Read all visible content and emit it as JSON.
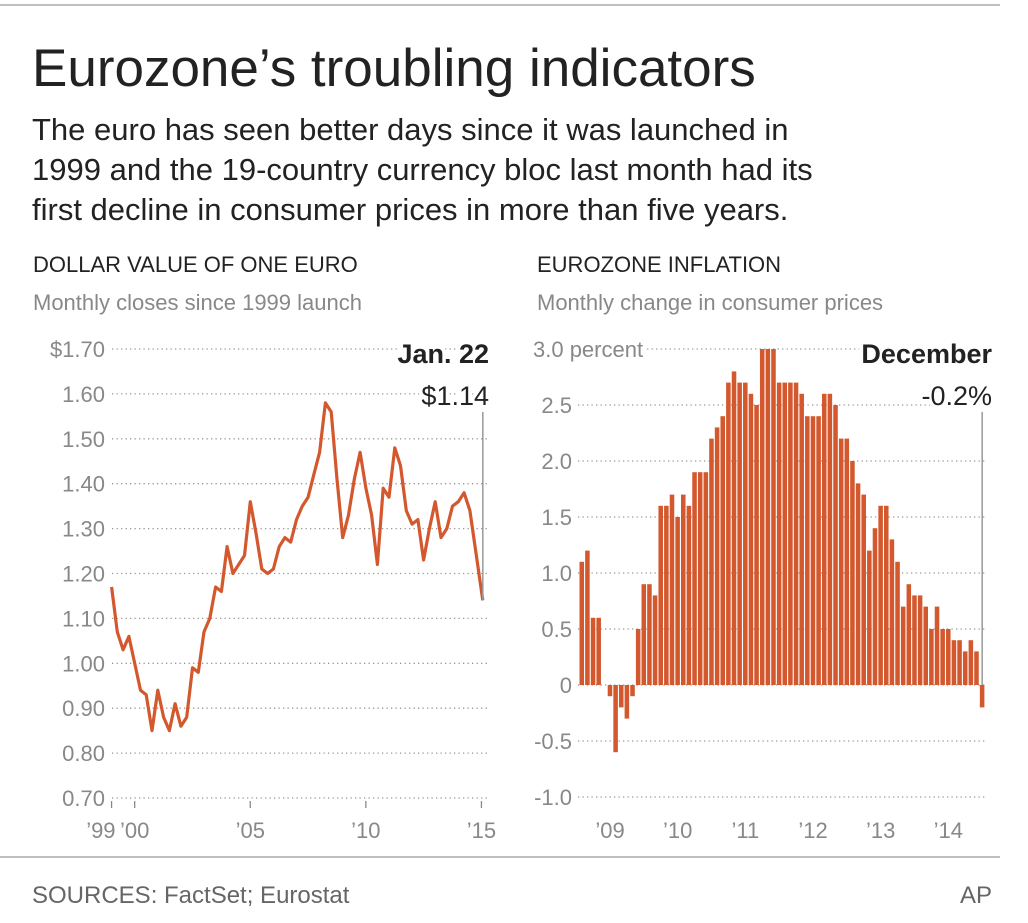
{
  "header": {
    "title": "Eurozone’s troubling indicators",
    "subtitle": [
      "The euro has seen better days since it was launched in",
      "1999 and the 19-country currency bloc last month had its",
      "first decline in consumer prices in more than five years."
    ]
  },
  "chart_data": [
    {
      "type": "line",
      "title": "DOLLAR VALUE OF ONE EURO",
      "subtitle": "Monthly closes since 1999 launch",
      "color": "#d4582e",
      "grid": true,
      "annotations": [
        "Jan. 22",
        "$1.14"
      ],
      "x": [
        1999,
        1999.25,
        1999.5,
        1999.75,
        2000,
        2000.25,
        2000.5,
        2000.75,
        2001,
        2001.25,
        2001.5,
        2001.75,
        2002,
        2002.25,
        2002.5,
        2002.75,
        2003,
        2003.25,
        2003.5,
        2003.75,
        2004,
        2004.25,
        2004.5,
        2004.75,
        2005,
        2005.25,
        2005.5,
        2005.75,
        2006,
        2006.25,
        2006.5,
        2006.75,
        2007,
        2007.25,
        2007.5,
        2007.75,
        2008,
        2008.25,
        2008.5,
        2008.75,
        2009,
        2009.25,
        2009.5,
        2009.75,
        2010,
        2010.25,
        2010.5,
        2010.75,
        2011,
        2011.25,
        2011.5,
        2011.75,
        2012,
        2012.25,
        2012.5,
        2012.75,
        2013,
        2013.25,
        2013.5,
        2013.75,
        2014,
        2014.25,
        2014.5,
        2014.75,
        2015.06
      ],
      "values": [
        1.17,
        1.07,
        1.03,
        1.06,
        1.0,
        0.94,
        0.93,
        0.85,
        0.94,
        0.88,
        0.85,
        0.91,
        0.86,
        0.88,
        0.99,
        0.98,
        1.07,
        1.1,
        1.17,
        1.16,
        1.26,
        1.2,
        1.22,
        1.24,
        1.36,
        1.29,
        1.21,
        1.2,
        1.21,
        1.26,
        1.28,
        1.27,
        1.32,
        1.35,
        1.37,
        1.42,
        1.47,
        1.58,
        1.56,
        1.41,
        1.28,
        1.33,
        1.41,
        1.47,
        1.39,
        1.33,
        1.22,
        1.39,
        1.37,
        1.48,
        1.44,
        1.34,
        1.31,
        1.32,
        1.23,
        1.3,
        1.36,
        1.28,
        1.3,
        1.35,
        1.36,
        1.38,
        1.34,
        1.25,
        1.14
      ],
      "xlim": [
        1998.5,
        2015.5
      ],
      "xticks": [
        {
          "value": 1999,
          "label": "’99"
        },
        {
          "value": 2000,
          "label": "’00"
        },
        {
          "value": 2005,
          "label": "’05"
        },
        {
          "value": 2010,
          "label": "’10"
        },
        {
          "value": 2015,
          "label": "’15"
        }
      ],
      "ylim": [
        0.7,
        1.7
      ],
      "yticks": [
        {
          "value": 1.7,
          "label": "$1.70"
        },
        {
          "value": 1.6,
          "label": "1.60"
        },
        {
          "value": 1.5,
          "label": "1.50"
        },
        {
          "value": 1.4,
          "label": "1.40"
        },
        {
          "value": 1.3,
          "label": "1.30"
        },
        {
          "value": 1.2,
          "label": "1.20"
        },
        {
          "value": 1.1,
          "label": "1.10"
        },
        {
          "value": 1.0,
          "label": "1.00"
        },
        {
          "value": 0.9,
          "label": "0.90"
        },
        {
          "value": 0.8,
          "label": "0.80"
        },
        {
          "value": 0.7,
          "label": "0.70"
        }
      ]
    },
    {
      "type": "bar",
      "title": "EUROZONE INFLATION",
      "subtitle": "Monthly change in consumer prices",
      "color": "#d4582e",
      "grid": true,
      "annotations": [
        "December",
        "-0.2%"
      ],
      "categories": [
        null,
        null,
        null,
        null,
        null,
        "’09",
        null,
        null,
        null,
        null,
        null,
        null,
        null,
        null,
        null,
        null,
        null,
        "’10",
        null,
        null,
        null,
        null,
        null,
        null,
        null,
        null,
        null,
        null,
        null,
        "’11",
        null,
        null,
        null,
        null,
        null,
        null,
        null,
        null,
        null,
        null,
        null,
        "’12",
        null,
        null,
        null,
        null,
        null,
        null,
        null,
        null,
        null,
        null,
        null,
        "’13",
        null,
        null,
        null,
        null,
        null,
        null,
        null,
        null,
        null,
        null,
        null,
        "’14",
        null,
        null,
        null,
        null,
        null,
        null
      ],
      "values": [
        1.1,
        1.2,
        0.6,
        0.6,
        0.0,
        -0.1,
        -0.6,
        -0.2,
        -0.3,
        -0.1,
        0.5,
        0.9,
        0.9,
        0.8,
        1.6,
        1.6,
        1.7,
        1.5,
        1.7,
        1.6,
        1.9,
        1.9,
        1.9,
        2.2,
        2.3,
        2.4,
        2.7,
        2.8,
        2.7,
        2.7,
        2.6,
        2.5,
        3.0,
        3.0,
        3.0,
        2.7,
        2.7,
        2.7,
        2.7,
        2.6,
        2.4,
        2.4,
        2.4,
        2.6,
        2.6,
        2.5,
        2.2,
        2.2,
        2.0,
        1.8,
        1.7,
        1.2,
        1.4,
        1.6,
        1.6,
        1.3,
        1.1,
        0.7,
        0.9,
        0.8,
        0.8,
        0.7,
        0.5,
        0.7,
        0.5,
        0.5,
        0.4,
        0.4,
        0.3,
        0.4,
        0.3,
        -0.2
      ],
      "ylim": [
        -1,
        3
      ],
      "yticks": [
        {
          "value": 3,
          "label": "3.0 percent"
        },
        2.5,
        {
          "value": 2,
          "label": "2.0"
        },
        1.5,
        {
          "value": 1,
          "label": "1.0"
        },
        0.5,
        0,
        -0.5,
        {
          "value": -1,
          "label": "-1.0"
        }
      ]
    }
  ],
  "footer": {
    "source": "SOURCES: FactSet; Eurostat",
    "credit": "AP"
  }
}
